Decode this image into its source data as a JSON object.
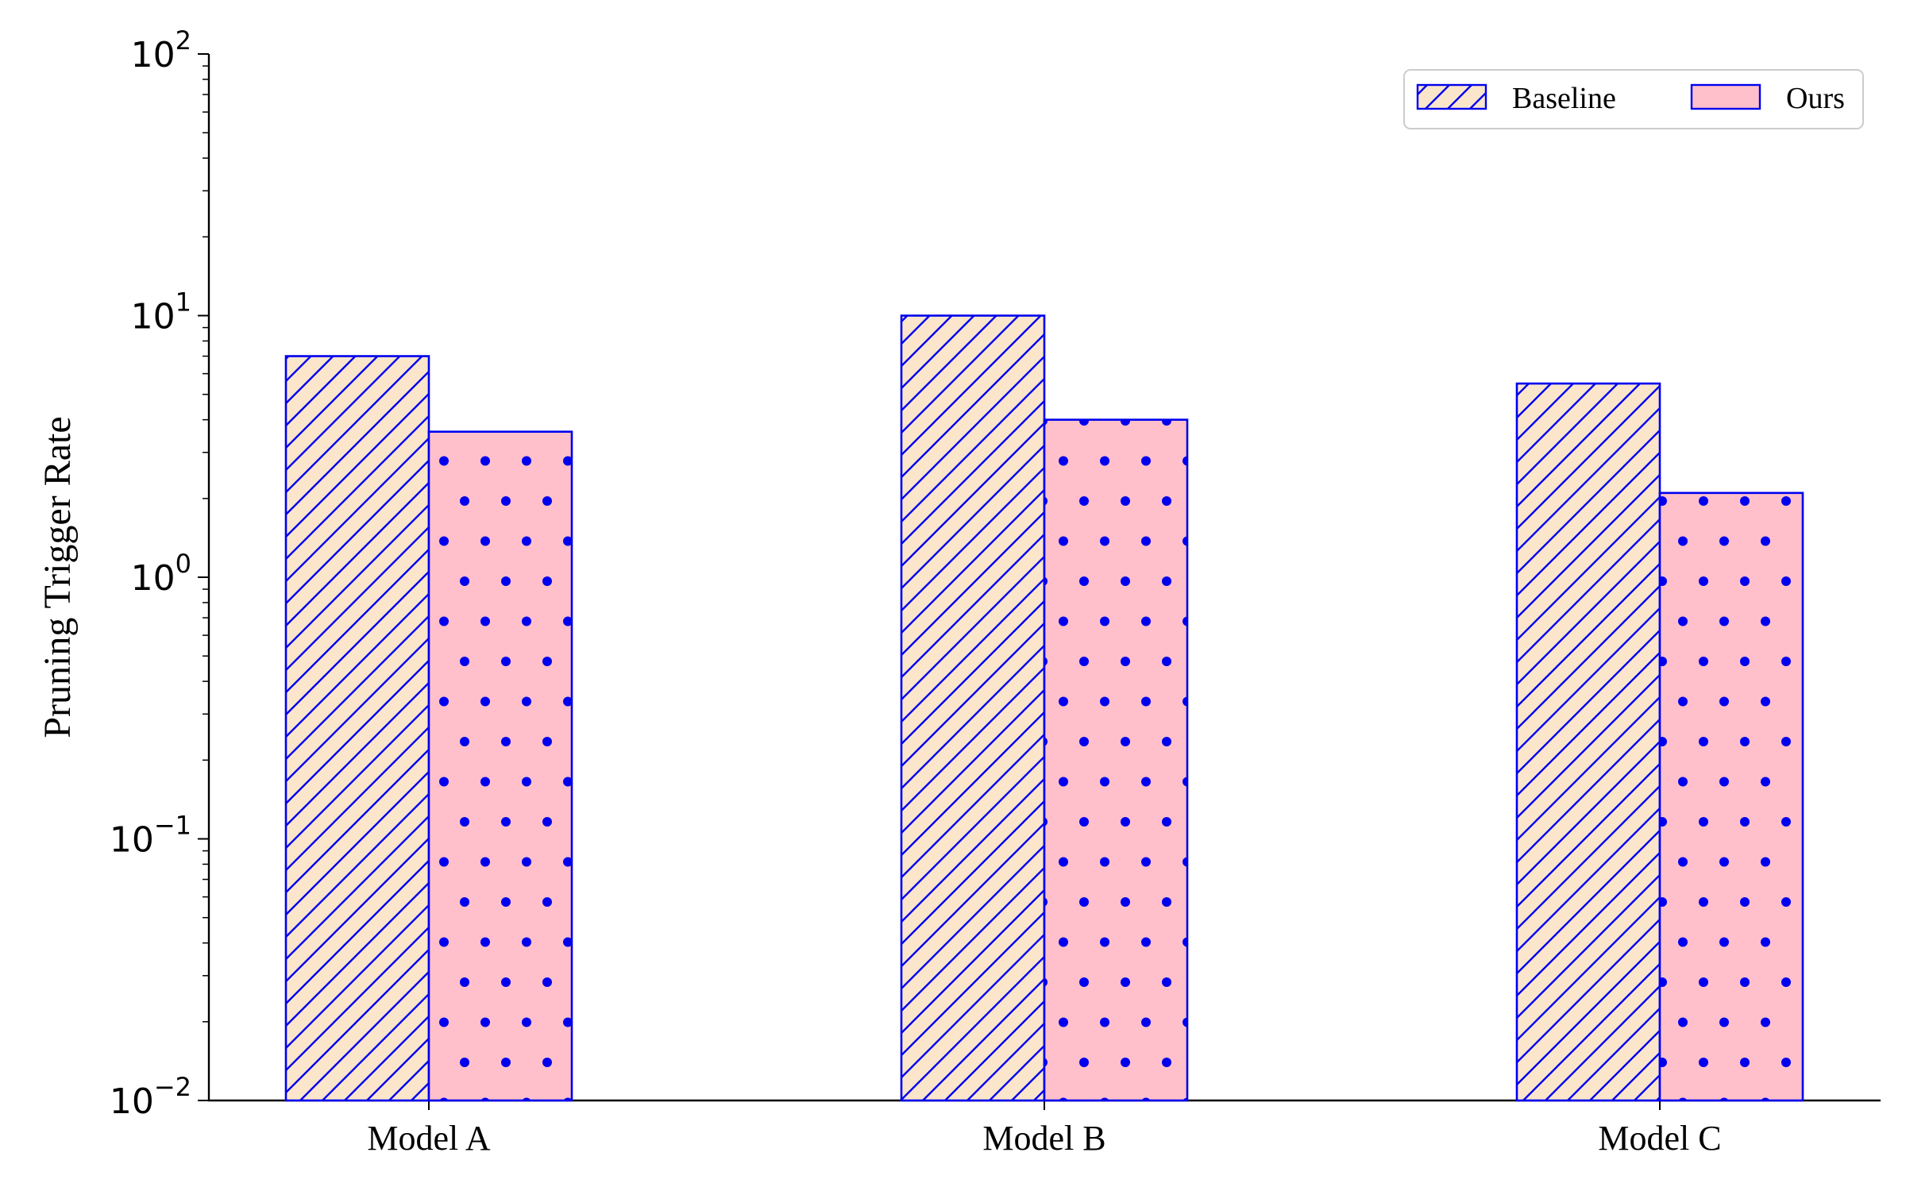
{
  "chart_data": {
    "type": "bar",
    "title": "",
    "xlabel": "",
    "ylabel": "Pruning Trigger Rate",
    "yscale": "log",
    "ylim": [
      0.01,
      100
    ],
    "yticks": [
      {
        "value": 0.01,
        "base": "10",
        "exp": "−2"
      },
      {
        "value": 0.1,
        "base": "10",
        "exp": "−1"
      },
      {
        "value": 1,
        "base": "10",
        "exp": "0"
      },
      {
        "value": 10,
        "base": "10",
        "exp": "1"
      },
      {
        "value": 100,
        "base": "10",
        "exp": "2"
      }
    ],
    "categories": [
      "Model A",
      "Model B",
      "Model C"
    ],
    "series": [
      {
        "name": "Baseline",
        "values": [
          7.0,
          10.0,
          5.5
        ],
        "fill": "#fbe6cc",
        "edge": "#0000ee",
        "hatch": "diagonal"
      },
      {
        "name": "Ours",
        "values": [
          3.6,
          4.0,
          2.1
        ],
        "fill": "#ffc0cb",
        "edge": "#0000ee",
        "hatch": "dots"
      }
    ],
    "legend": {
      "placement": "top-right",
      "columns": 2
    },
    "grid": false
  }
}
